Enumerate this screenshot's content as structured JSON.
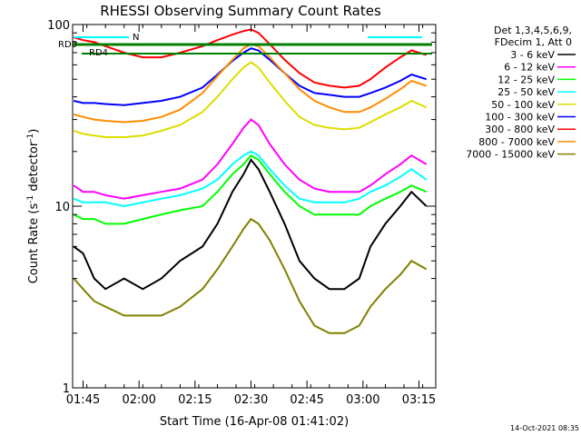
{
  "chart_data": {
    "type": "line",
    "title": "RHESSI Observing Summary Count Rates",
    "xlabel": "Start Time (16-Apr-08 01:41:02)",
    "ylabel_main": "Count Rate (s",
    "ylabel_sup1": "-1",
    "ylabel_mid": " detector",
    "ylabel_sup2": "-1",
    "ylabel_end": ")",
    "yscale": "log",
    "ylim": [
      1,
      100
    ],
    "xlim_minutes": [
      1.2,
      98.5
    ],
    "x_ticks": [
      {
        "label": "01:45",
        "m": 4
      },
      {
        "label": "02:00",
        "m": 19
      },
      {
        "label": "02:15",
        "m": 34
      },
      {
        "label": "02:30",
        "m": 49
      },
      {
        "label": "02:45",
        "m": 64
      },
      {
        "label": "03:00",
        "m": 79
      },
      {
        "label": "03:15",
        "m": 94
      }
    ],
    "y_ticks": [
      {
        "label": "1",
        "v": 1
      },
      {
        "label": "10",
        "v": 10
      },
      {
        "label": "100",
        "v": 100
      }
    ],
    "legend_header": [
      "Det 1,3,4,5,6,9,",
      "FDecim 1, Att 0"
    ],
    "legend_placement": "right",
    "flag_labels": {
      "rd0": "RD0",
      "rd4": "RD4",
      "n": "N"
    },
    "timestamp": "14-Oct-2021 08:35",
    "series": [
      {
        "name": "3 - 6 keV",
        "color": "#000000",
        "points": [
          [
            1.5,
            6
          ],
          [
            4,
            5.5
          ],
          [
            7,
            4
          ],
          [
            10,
            3.5
          ],
          [
            15,
            4
          ],
          [
            20,
            3.5
          ],
          [
            25,
            4
          ],
          [
            30,
            5
          ],
          [
            36,
            6
          ],
          [
            40,
            8
          ],
          [
            44,
            12
          ],
          [
            47,
            15
          ],
          [
            49,
            18
          ],
          [
            51,
            16
          ],
          [
            54,
            12
          ],
          [
            58,
            8
          ],
          [
            62,
            5
          ],
          [
            66,
            4
          ],
          [
            70,
            3.5
          ],
          [
            74,
            3.5
          ],
          [
            78,
            4
          ],
          [
            81,
            6
          ],
          [
            85,
            8
          ],
          [
            89,
            10
          ],
          [
            92,
            12
          ],
          [
            96,
            10
          ]
        ]
      },
      {
        "name": "6 - 12 keV",
        "color": "#ff00ff",
        "points": [
          [
            1.5,
            13
          ],
          [
            4,
            12
          ],
          [
            7,
            12
          ],
          [
            10,
            11.5
          ],
          [
            15,
            11
          ],
          [
            20,
            11.5
          ],
          [
            25,
            12
          ],
          [
            30,
            12.5
          ],
          [
            36,
            14
          ],
          [
            40,
            17
          ],
          [
            44,
            22
          ],
          [
            47,
            27
          ],
          [
            49,
            30
          ],
          [
            51,
            28
          ],
          [
            54,
            22
          ],
          [
            58,
            17
          ],
          [
            62,
            14
          ],
          [
            66,
            12.5
          ],
          [
            70,
            12
          ],
          [
            74,
            12
          ],
          [
            78,
            12
          ],
          [
            81,
            13
          ],
          [
            85,
            15
          ],
          [
            89,
            17
          ],
          [
            92,
            19
          ],
          [
            96,
            17
          ]
        ]
      },
      {
        "name": "12 - 25 keV",
        "color": "#00ff00",
        "points": [
          [
            1.5,
            9
          ],
          [
            4,
            8.5
          ],
          [
            7,
            8.5
          ],
          [
            10,
            8
          ],
          [
            15,
            8
          ],
          [
            20,
            8.5
          ],
          [
            25,
            9
          ],
          [
            30,
            9.5
          ],
          [
            36,
            10
          ],
          [
            40,
            12
          ],
          [
            44,
            15
          ],
          [
            47,
            17
          ],
          [
            49,
            19
          ],
          [
            51,
            18
          ],
          [
            54,
            15
          ],
          [
            58,
            12
          ],
          [
            62,
            10
          ],
          [
            66,
            9
          ],
          [
            70,
            9
          ],
          [
            74,
            9
          ],
          [
            78,
            9
          ],
          [
            81,
            10
          ],
          [
            85,
            11
          ],
          [
            89,
            12
          ],
          [
            92,
            13
          ],
          [
            96,
            12
          ]
        ]
      },
      {
        "name": "25 - 50 keV",
        "color": "#00ffff",
        "points": [
          [
            1.5,
            11
          ],
          [
            4,
            10.5
          ],
          [
            7,
            10.5
          ],
          [
            10,
            10.5
          ],
          [
            15,
            10
          ],
          [
            20,
            10.5
          ],
          [
            25,
            11
          ],
          [
            30,
            11.5
          ],
          [
            36,
            12.5
          ],
          [
            40,
            14
          ],
          [
            44,
            17
          ],
          [
            47,
            19
          ],
          [
            49,
            20
          ],
          [
            51,
            19
          ],
          [
            54,
            16
          ],
          [
            58,
            13
          ],
          [
            62,
            11
          ],
          [
            66,
            10.5
          ],
          [
            70,
            10.5
          ],
          [
            74,
            10.5
          ],
          [
            78,
            11
          ],
          [
            81,
            12
          ],
          [
            85,
            13
          ],
          [
            89,
            14.5
          ],
          [
            92,
            16
          ],
          [
            96,
            14
          ]
        ]
      },
      {
        "name": "50 - 100 keV",
        "color": "#dddd00",
        "points": [
          [
            1.5,
            26
          ],
          [
            4,
            25
          ],
          [
            7,
            24.5
          ],
          [
            10,
            24
          ],
          [
            15,
            24
          ],
          [
            20,
            24.5
          ],
          [
            25,
            26
          ],
          [
            30,
            28
          ],
          [
            36,
            33
          ],
          [
            40,
            40
          ],
          [
            44,
            50
          ],
          [
            47,
            58
          ],
          [
            49,
            62
          ],
          [
            51,
            58
          ],
          [
            54,
            48
          ],
          [
            58,
            38
          ],
          [
            62,
            31
          ],
          [
            66,
            28
          ],
          [
            70,
            27
          ],
          [
            74,
            26.5
          ],
          [
            78,
            27
          ],
          [
            81,
            29
          ],
          [
            85,
            32
          ],
          [
            89,
            35
          ],
          [
            92,
            38
          ],
          [
            96,
            35
          ]
        ]
      },
      {
        "name": "100 - 300 keV",
        "color": "#0000ff",
        "points": [
          [
            1.5,
            38
          ],
          [
            4,
            37
          ],
          [
            7,
            37
          ],
          [
            10,
            36.5
          ],
          [
            15,
            36
          ],
          [
            20,
            37
          ],
          [
            25,
            38
          ],
          [
            30,
            40
          ],
          [
            36,
            45
          ],
          [
            40,
            53
          ],
          [
            44,
            63
          ],
          [
            47,
            70
          ],
          [
            49,
            74
          ],
          [
            51,
            72
          ],
          [
            54,
            64
          ],
          [
            58,
            54
          ],
          [
            62,
            46
          ],
          [
            66,
            42
          ],
          [
            70,
            41
          ],
          [
            74,
            40
          ],
          [
            78,
            40
          ],
          [
            81,
            42
          ],
          [
            85,
            45
          ],
          [
            89,
            49
          ],
          [
            92,
            53
          ],
          [
            96,
            50
          ]
        ]
      },
      {
        "name": "300 - 800 keV",
        "color": "#ff0000",
        "points": [
          [
            1.5,
            85
          ],
          [
            4,
            82
          ],
          [
            7,
            80
          ],
          [
            10,
            76
          ],
          [
            15,
            70
          ],
          [
            20,
            66
          ],
          [
            25,
            66
          ],
          [
            30,
            70
          ],
          [
            36,
            76
          ],
          [
            40,
            82
          ],
          [
            44,
            88
          ],
          [
            47,
            92
          ],
          [
            49,
            94
          ],
          [
            51,
            90
          ],
          [
            54,
            78
          ],
          [
            58,
            64
          ],
          [
            62,
            54
          ],
          [
            66,
            48
          ],
          [
            70,
            46
          ],
          [
            74,
            45
          ],
          [
            78,
            46
          ],
          [
            81,
            50
          ],
          [
            85,
            58
          ],
          [
            89,
            66
          ],
          [
            92,
            72
          ],
          [
            96,
            68
          ]
        ]
      },
      {
        "name": "800 - 7000 keV",
        "color": "#ff8c00",
        "points": [
          [
            1.5,
            32
          ],
          [
            4,
            31
          ],
          [
            7,
            30
          ],
          [
            10,
            29.5
          ],
          [
            15,
            29
          ],
          [
            20,
            29.5
          ],
          [
            25,
            31
          ],
          [
            30,
            34
          ],
          [
            36,
            42
          ],
          [
            40,
            52
          ],
          [
            44,
            64
          ],
          [
            47,
            74
          ],
          [
            49,
            78
          ],
          [
            51,
            76
          ],
          [
            54,
            66
          ],
          [
            58,
            54
          ],
          [
            62,
            44
          ],
          [
            66,
            38
          ],
          [
            70,
            35
          ],
          [
            74,
            33
          ],
          [
            78,
            33
          ],
          [
            81,
            35
          ],
          [
            85,
            39
          ],
          [
            89,
            44
          ],
          [
            92,
            49
          ],
          [
            96,
            46
          ]
        ]
      },
      {
        "name": "7000 - 15000 keV",
        "color": "#808000",
        "points": [
          [
            1.5,
            4
          ],
          [
            4,
            3.5
          ],
          [
            7,
            3
          ],
          [
            10,
            2.8
          ],
          [
            15,
            2.5
          ],
          [
            20,
            2.5
          ],
          [
            25,
            2.5
          ],
          [
            30,
            2.8
          ],
          [
            36,
            3.5
          ],
          [
            40,
            4.5
          ],
          [
            44,
            6
          ],
          [
            47,
            7.5
          ],
          [
            49,
            8.5
          ],
          [
            51,
            8
          ],
          [
            54,
            6.5
          ],
          [
            58,
            4.5
          ],
          [
            62,
            3
          ],
          [
            66,
            2.2
          ],
          [
            70,
            2
          ],
          [
            74,
            2
          ],
          [
            78,
            2.2
          ],
          [
            81,
            2.8
          ],
          [
            85,
            3.5
          ],
          [
            89,
            4.2
          ],
          [
            92,
            5
          ],
          [
            96,
            4.5
          ]
        ]
      }
    ]
  }
}
